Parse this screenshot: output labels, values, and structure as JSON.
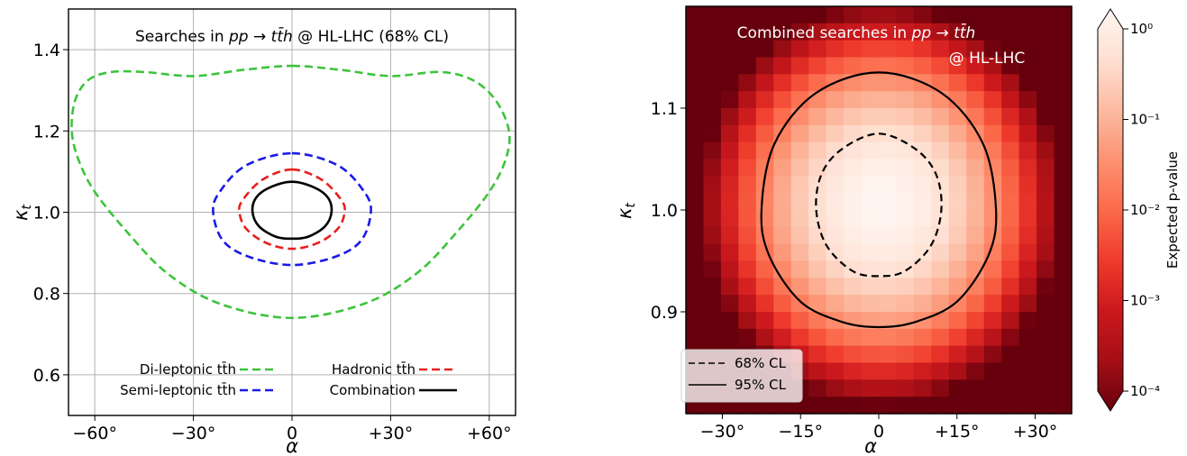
{
  "chart_data": [
    {
      "type": "line",
      "title": "Searches in pp → tt̄h @ HL-LHC (68% CL)",
      "xlabel": "α",
      "ylabel": "κt",
      "xlim": [
        -68,
        68
      ],
      "ylim": [
        0.5,
        1.5
      ],
      "x_ticks": [
        -60,
        -30,
        0,
        30,
        60
      ],
      "x_tick_labels": [
        "−60°",
        "−30°",
        "0",
        "+30°",
        "+60°"
      ],
      "y_ticks": [
        0.6,
        0.8,
        1.0,
        1.2,
        1.4
      ],
      "y_tick_labels": [
        "0.6",
        "0.8",
        "1.0",
        "1.2",
        "1.4"
      ],
      "grid": true,
      "legend_position": "bottom",
      "series": [
        {
          "name": "Di-leptonic tt̄h",
          "color": "#3cc43c",
          "style": "dashed",
          "x": [
            0,
            15,
            30,
            45,
            55,
            62,
            66,
            65,
            60,
            50,
            38,
            22,
            0,
            -22,
            -38,
            -50,
            -60,
            -65,
            -67,
            -66,
            -62,
            -55,
            -45,
            -30,
            -15,
            0
          ],
          "y": [
            1.36,
            1.35,
            1.335,
            1.345,
            1.325,
            1.275,
            1.2,
            1.13,
            1.05,
            0.95,
            0.85,
            0.775,
            0.74,
            0.775,
            0.85,
            0.95,
            1.05,
            1.13,
            1.2,
            1.275,
            1.325,
            1.345,
            1.345,
            1.335,
            1.35,
            1.36
          ]
        },
        {
          "name": "Hadronic tt̄h",
          "color": "#e82020",
          "style": "dashed",
          "x": [
            0,
            9,
            15,
            16,
            14,
            8,
            0,
            -8,
            -14,
            -16,
            -15,
            -9,
            0
          ],
          "y": [
            1.105,
            1.08,
            1.03,
            1.0,
            0.96,
            0.925,
            0.91,
            0.925,
            0.96,
            1.0,
            1.03,
            1.08,
            1.105
          ]
        },
        {
          "name": "Semi-leptonic tt̄h",
          "color": "#1a1ae6",
          "style": "dashed",
          "x": [
            0,
            14,
            22,
            24,
            21,
            13,
            0,
            -13,
            -21,
            -24,
            -22,
            -14,
            0
          ],
          "y": [
            1.145,
            1.115,
            1.05,
            1.0,
            0.93,
            0.89,
            0.87,
            0.89,
            0.93,
            1.0,
            1.05,
            1.115,
            1.145
          ]
        },
        {
          "name": "Combination",
          "color": "#000000",
          "style": "solid",
          "x": [
            0,
            7,
            11,
            12,
            10,
            5,
            0,
            -5,
            -10,
            -12,
            -11,
            -7,
            0
          ],
          "y": [
            1.075,
            1.06,
            1.035,
            1.0,
            0.965,
            0.94,
            0.935,
            0.94,
            0.965,
            1.0,
            1.035,
            1.06,
            1.075
          ]
        }
      ],
      "legend": [
        {
          "label": "Di-leptonic tt̄h",
          "color": "#3cc43c",
          "style": "dashed"
        },
        {
          "label": "Hadronic tt̄h",
          "color": "#e82020",
          "style": "dashed"
        },
        {
          "label": "Semi-leptonic tt̄h",
          "color": "#1a1ae6",
          "style": "dashed"
        },
        {
          "label": "Combination",
          "color": "#000000",
          "style": "solid"
        }
      ]
    },
    {
      "type": "heatmap",
      "title": "Combined searches in pp → tt̄h @ HL-LHC",
      "xlabel": "α",
      "ylabel": "κt",
      "xlim": [
        -37,
        37
      ],
      "ylim": [
        0.8,
        1.2
      ],
      "x_ticks": [
        -30,
        -15,
        0,
        15,
        30
      ],
      "x_tick_labels": [
        "−30°",
        "−15°",
        "0",
        "+15°",
        "+30°"
      ],
      "y_ticks": [
        0.9,
        1.0,
        1.1
      ],
      "y_tick_labels": [
        "0.9",
        "1.0",
        "1.1"
      ],
      "grid": false,
      "colormap": "Reds (reversed)",
      "color_scale": "log",
      "colorbar": {
        "label": "Expected p-value",
        "ticks": [
          0.0001,
          0.001,
          0.01,
          0.1,
          1.0
        ],
        "tick_labels": [
          "10⁻⁴",
          "10⁻³",
          "10⁻²",
          "10⁻¹",
          "10⁰"
        ]
      },
      "p_value_model": "log10 p = -4 * d^2 / 2.5, d^2 = ((α-0.5)/22)^2 + ((κt-1.005)/0.125)^2",
      "center": {
        "alpha": 0.5,
        "kappa_t": 1.005
      },
      "contours": [
        {
          "name": "68% CL",
          "style": "dashed",
          "color": "#000000",
          "x": [
            0,
            7,
            11,
            12,
            10,
            5,
            0,
            -5,
            -10,
            -12,
            -11,
            -7,
            0
          ],
          "y": [
            1.075,
            1.06,
            1.035,
            1.0,
            0.965,
            0.94,
            0.935,
            0.94,
            0.965,
            1.0,
            1.035,
            1.06,
            1.075
          ]
        },
        {
          "name": "95% CL",
          "style": "solid",
          "color": "#000000",
          "x": [
            0,
            12,
            20,
            22.5,
            21,
            15,
            7,
            0,
            -7,
            -15,
            -21,
            -22.5,
            -20,
            -12,
            0
          ],
          "y": [
            1.135,
            1.115,
            1.065,
            1.0,
            0.955,
            0.91,
            0.89,
            0.885,
            0.89,
            0.91,
            0.955,
            1.0,
            1.065,
            1.115,
            1.135
          ]
        }
      ],
      "legend": [
        {
          "label": "68% CL",
          "style": "dashed"
        },
        {
          "label": "95% CL",
          "style": "solid"
        }
      ],
      "legend_position": "bottom-left"
    }
  ]
}
